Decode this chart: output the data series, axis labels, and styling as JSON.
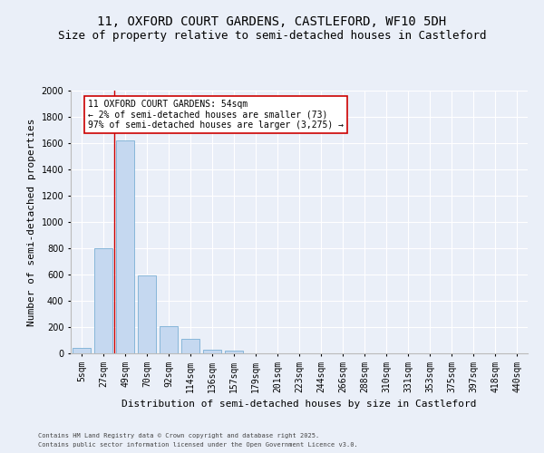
{
  "title": "11, OXFORD COURT GARDENS, CASTLEFORD, WF10 5DH",
  "subtitle": "Size of property relative to semi-detached houses in Castleford",
  "xlabel": "Distribution of semi-detached houses by size in Castleford",
  "ylabel": "Number of semi-detached properties",
  "categories": [
    "5sqm",
    "27sqm",
    "49sqm",
    "70sqm",
    "92sqm",
    "114sqm",
    "136sqm",
    "157sqm",
    "179sqm",
    "201sqm",
    "223sqm",
    "244sqm",
    "266sqm",
    "288sqm",
    "310sqm",
    "331sqm",
    "353sqm",
    "375sqm",
    "397sqm",
    "418sqm",
    "440sqm"
  ],
  "values": [
    42,
    800,
    1620,
    595,
    205,
    112,
    25,
    20,
    0,
    0,
    0,
    0,
    0,
    0,
    0,
    0,
    0,
    0,
    0,
    0,
    0
  ],
  "bar_color": "#c5d8f0",
  "bar_edge_color": "#7aafd4",
  "vline_color": "#cc0000",
  "annotation_text": "11 OXFORD COURT GARDENS: 54sqm\n← 2% of semi-detached houses are smaller (73)\n97% of semi-detached houses are larger (3,275) →",
  "annotation_box_color": "#ffffff",
  "annotation_box_edge": "#cc0000",
  "ylim": [
    0,
    2000
  ],
  "yticks": [
    0,
    200,
    400,
    600,
    800,
    1000,
    1200,
    1400,
    1600,
    1800,
    2000
  ],
  "footer_line1": "Contains HM Land Registry data © Crown copyright and database right 2025.",
  "footer_line2": "Contains public sector information licensed under the Open Government Licence v3.0.",
  "bg_color": "#eaeff8",
  "grid_color": "#ffffff",
  "title_fontsize": 10,
  "subtitle_fontsize": 9,
  "axis_fontsize": 7,
  "ylabel_fontsize": 8,
  "xlabel_fontsize": 8,
  "footer_fontsize": 5,
  "ann_fontsize": 7
}
